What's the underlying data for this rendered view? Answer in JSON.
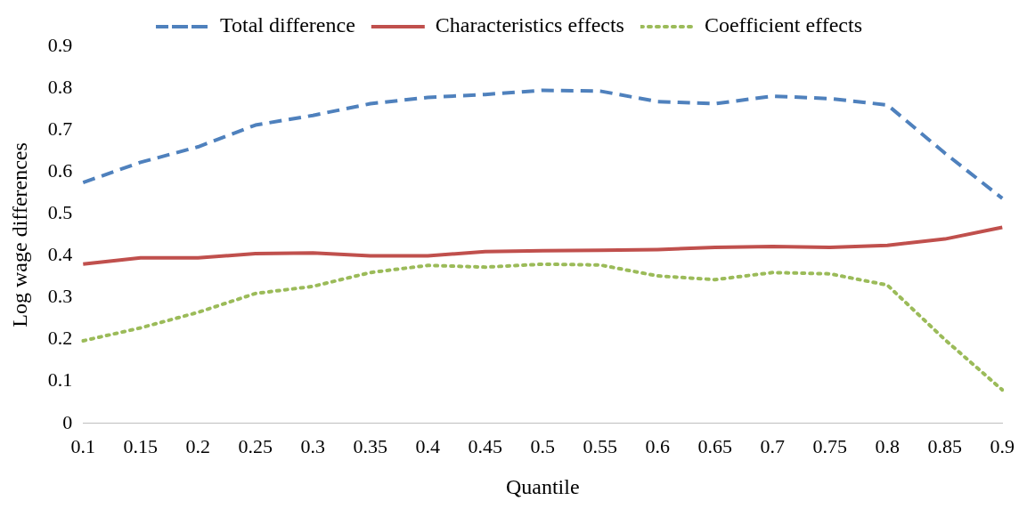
{
  "chart_data": {
    "type": "line",
    "xlabel": "Quantile",
    "ylabel": "Log wage differences",
    "categories": [
      "0.1",
      "0.15",
      "0.2",
      "0.25",
      "0.3",
      "0.35",
      "0.4",
      "0.45",
      "0.5",
      "0.55",
      "0.6",
      "0.65",
      "0.7",
      "0.75",
      "0.8",
      "0.85",
      "0.9"
    ],
    "series": [
      {
        "name": "Total difference",
        "color": "#4f81bd",
        "line_style": "dashed",
        "values": [
          0.575,
          0.623,
          0.66,
          0.712,
          0.735,
          0.763,
          0.778,
          0.785,
          0.795,
          0.793,
          0.768,
          0.763,
          0.781,
          0.775,
          0.76,
          0.645,
          0.537
        ]
      },
      {
        "name": "Characteristics effects",
        "color": "#c0504d",
        "line_style": "solid",
        "values": [
          0.38,
          0.395,
          0.395,
          0.405,
          0.407,
          0.4,
          0.4,
          0.41,
          0.412,
          0.413,
          0.415,
          0.42,
          0.422,
          0.42,
          0.425,
          0.44,
          0.468
        ]
      },
      {
        "name": "Coefficient effects",
        "color": "#9bbb59",
        "line_style": "dotted",
        "values": [
          0.197,
          0.228,
          0.265,
          0.31,
          0.327,
          0.36,
          0.377,
          0.373,
          0.38,
          0.378,
          0.352,
          0.343,
          0.36,
          0.357,
          0.33,
          0.2,
          0.08
        ]
      }
    ],
    "ylim": [
      0,
      0.9
    ],
    "yticks": [
      0,
      0.1,
      0.2,
      0.3,
      0.4,
      0.5,
      0.6,
      0.7,
      0.8,
      0.9
    ],
    "grid": false,
    "legend": "top",
    "marker": "none"
  }
}
